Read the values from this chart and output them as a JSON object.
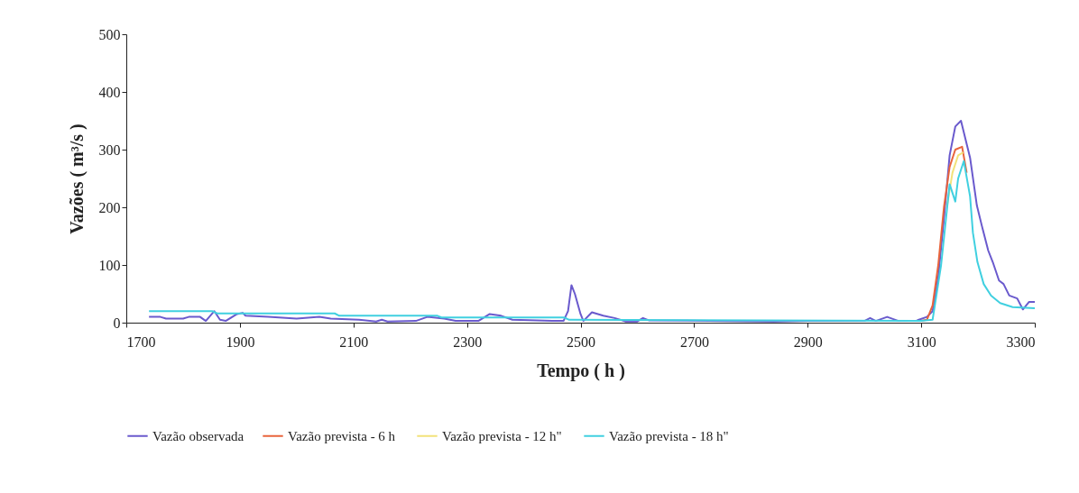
{
  "chart_data": {
    "type": "line",
    "xlabel": "Tempo ( h )",
    "ylabel": "Vazões ( m³/s )",
    "xlim": [
      1700,
      3300
    ],
    "xticks": [
      1700,
      1900,
      2100,
      2300,
      2500,
      2700,
      2900,
      3100,
      3300
    ],
    "ylim": [
      0,
      500
    ],
    "yticks": [
      0,
      100,
      200,
      300,
      400,
      500
    ],
    "legend": "bottom",
    "grid": false,
    "line_style": "solid",
    "marker": "none",
    "series": [
      {
        "name": "Vazão observada",
        "color": "#6a5acd",
        "x": [
          1740,
          1760,
          1770,
          1800,
          1810,
          1830,
          1840,
          1855,
          1865,
          1875,
          1895,
          1905,
          1910,
          1950,
          2000,
          2040,
          2060,
          2110,
          2140,
          2150,
          2160,
          2210,
          2230,
          2260,
          2280,
          2320,
          2340,
          2360,
          2380,
          2450,
          2470,
          2478,
          2484,
          2490,
          2500,
          2505,
          2520,
          2540,
          2560,
          2580,
          2600,
          2610,
          2620,
          2840,
          2900,
          3000,
          3010,
          3020,
          3040,
          3060,
          3090,
          3110,
          3120,
          3130,
          3140,
          3150,
          3160,
          3170,
          3186,
          3198,
          3207,
          3218,
          3226,
          3237,
          3245,
          3255,
          3269,
          3279,
          3290,
          3300
        ],
        "values": [
          10,
          10,
          7,
          7,
          10,
          10,
          3,
          20,
          5,
          3,
          15,
          17,
          12,
          10,
          7,
          10,
          7,
          5,
          2,
          5,
          2,
          3,
          10,
          7,
          3,
          3,
          15,
          12,
          5,
          3,
          3,
          20,
          65,
          50,
          15,
          3,
          18,
          12,
          8,
          2,
          2,
          8,
          4,
          2,
          3,
          3,
          8,
          3,
          10,
          3,
          3,
          10,
          20,
          80,
          180,
          290,
          340,
          350,
          286,
          203,
          167,
          125,
          105,
          73,
          67,
          47,
          42,
          23,
          36,
          36
        ]
      },
      {
        "name": "Vazão prevista -  6 h",
        "color": "#e8643c",
        "x": [
          3100,
          3110,
          3120,
          3130,
          3140,
          3150,
          3160,
          3172,
          3180
        ],
        "values": [
          3,
          5,
          30,
          100,
          200,
          270,
          300,
          305,
          260
        ]
      },
      {
        "name": "Vazão prevista -  12 h\"",
        "color": "#f2e27a",
        "x": [
          3145,
          3155,
          3165,
          3174
        ],
        "values": [
          200,
          260,
          290,
          295
        ]
      },
      {
        "name": "Vazão prevista - 18 h\"",
        "color": "#40d0e0",
        "x": [
          1740,
          1851,
          1860,
          2067,
          2075,
          2248,
          2255,
          2471,
          2480,
          3100,
          3120,
          3135,
          3150,
          3160,
          3165,
          3175,
          3186,
          3191,
          3199,
          3210,
          3223,
          3239,
          3261,
          3300
        ],
        "values": [
          20,
          20,
          16,
          16,
          12,
          12,
          9,
          9,
          5,
          3,
          5,
          100,
          240,
          210,
          250,
          280,
          219,
          156,
          105,
          67,
          47,
          34,
          27,
          25
        ]
      }
    ]
  }
}
